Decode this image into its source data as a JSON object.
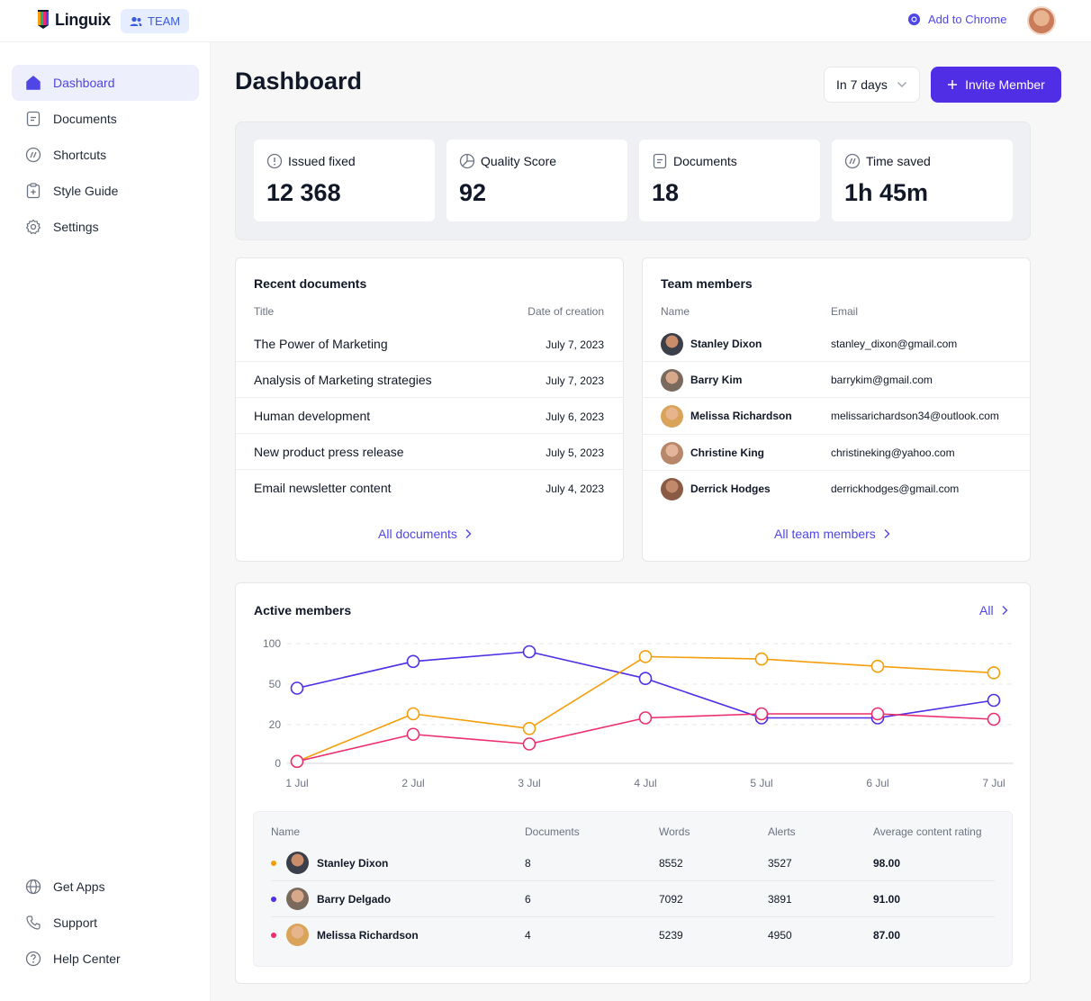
{
  "header": {
    "app_name": "Linguix",
    "team_badge": "TEAM",
    "add_to_chrome": "Add to Chrome"
  },
  "sidebar": {
    "items": [
      {
        "label": "Dashboard",
        "icon": "home-icon",
        "active": true
      },
      {
        "label": "Documents",
        "icon": "document-icon"
      },
      {
        "label": "Shortcuts",
        "icon": "shortcuts-icon"
      },
      {
        "label": "Style Guide",
        "icon": "style-guide-icon"
      },
      {
        "label": "Settings",
        "icon": "gear-icon"
      }
    ],
    "bottom_items": [
      {
        "label": "Get Apps",
        "icon": "globe-icon"
      },
      {
        "label": "Support",
        "icon": "phone-icon"
      },
      {
        "label": "Help Center",
        "icon": "help-icon"
      }
    ]
  },
  "main": {
    "title": "Dashboard",
    "period": "In 7 days",
    "invite_button": "Invite Member",
    "stats": [
      {
        "label": "Issued fixed",
        "value": "12 368",
        "icon": "alert-circle-icon"
      },
      {
        "label": "Quality Score",
        "value": "92",
        "icon": "pie-chart-icon"
      },
      {
        "label": "Documents",
        "value": "18",
        "icon": "document-icon"
      },
      {
        "label": "Time saved",
        "value": "1h 45m",
        "icon": "shortcuts-icon"
      }
    ]
  },
  "recent_documents": {
    "title": "Recent documents",
    "col_title": "Title",
    "col_date": "Date of creation",
    "rows": [
      {
        "title": "The Power of Marketing",
        "date": "July 7, 2023"
      },
      {
        "title": "Analysis of Marketing strategies",
        "date": "July 7, 2023"
      },
      {
        "title": "Human development",
        "date": "July 6, 2023"
      },
      {
        "title": "New product press release",
        "date": "July 5, 2023"
      },
      {
        "title": "Email newsletter content",
        "date": "July 4, 2023"
      }
    ],
    "link": "All documents"
  },
  "team_members": {
    "title": "Team members",
    "col_name": "Name",
    "col_email": "Email",
    "rows": [
      {
        "name": "Stanley Dixon",
        "email": "stanley_dixon@gmail.com",
        "avatar_color": "#3a3f4a"
      },
      {
        "name": "Barry Kim",
        "email": "barrykim@gmail.com",
        "avatar_color": "#7a6a5e"
      },
      {
        "name": "Melissa Richardson",
        "email": "melissarichardson34@outlook.com",
        "avatar_color": "#d9a35a"
      },
      {
        "name": "Christine King",
        "email": "christineking@yahoo.com",
        "avatar_color": "#b8876a"
      },
      {
        "name": "Derrick Hodges",
        "email": "derrickhodges@gmail.com",
        "avatar_color": "#8a5a44"
      }
    ],
    "link": "All team members"
  },
  "active_members": {
    "title": "Active members",
    "link": "All",
    "table": {
      "headers": [
        "Name",
        "Documents",
        "Words",
        "Alerts",
        "Average content rating"
      ],
      "rows": [
        {
          "name": "Stanley Dixon",
          "documents": "8",
          "words": "8552",
          "alerts": "3527",
          "rating": "98.00",
          "color": "#f59e0b",
          "avatar_color": "#3a3f4a"
        },
        {
          "name": "Barry Delgado",
          "documents": "6",
          "words": "7092",
          "alerts": "3891",
          "rating": "91.00",
          "color": "#4f2ee6",
          "avatar_color": "#7a6a5e"
        },
        {
          "name": "Melissa Richardson",
          "documents": "4",
          "words": "5239",
          "alerts": "4950",
          "rating": "87.00",
          "color": "#ec2e6b",
          "avatar_color": "#d9a35a"
        }
      ]
    }
  },
  "chart_data": {
    "type": "line",
    "x": [
      "1 Jul",
      "2 Jul",
      "3 Jul",
      "4 Jul",
      "5 Jul",
      "6 Jul",
      "7 Jul"
    ],
    "yticks": [
      0,
      20,
      50,
      100
    ],
    "grid": true,
    "series": [
      {
        "color": "#4f2ee6",
        "values": [
          47,
          78,
          90,
          57,
          25,
          25,
          38
        ]
      },
      {
        "color": "#f59e0b",
        "values": [
          1,
          28,
          18,
          84,
          81,
          72,
          64
        ]
      },
      {
        "color": "#ec2e6b",
        "values": [
          1,
          15,
          10,
          25,
          28,
          28,
          24
        ]
      }
    ]
  }
}
